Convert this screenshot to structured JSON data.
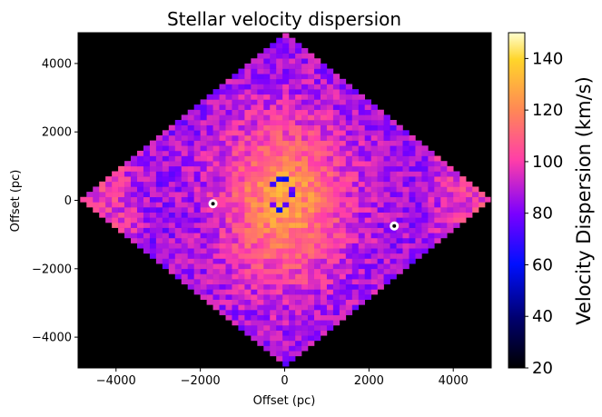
{
  "chart_data": {
    "type": "heatmap",
    "title": "Stellar velocity dispersion",
    "xlabel": "Offset (pc)",
    "ylabel": "Offset (pc)",
    "xlim": [
      -4900,
      4900
    ],
    "ylim": [
      -4900,
      4900
    ],
    "xticks": [
      -4000,
      -2000,
      0,
      2000,
      4000
    ],
    "xtick_labels": [
      "−4000",
      "−2000",
      "0",
      "2000",
      "4000"
    ],
    "yticks": [
      -4000,
      -2000,
      0,
      2000,
      4000
    ],
    "ytick_labels": [
      "−4000",
      "−2000",
      "0",
      "2000",
      "4000"
    ],
    "map_half_diagonal": [
      4850,
      4850
    ],
    "background": "#000000",
    "colorbar": {
      "label": "Velocity Dispersion (km/s)",
      "range": [
        20,
        150
      ],
      "ticks": [
        20,
        40,
        60,
        80,
        100,
        120,
        140
      ],
      "tick_labels": [
        "20",
        "40",
        "60",
        "80",
        "100",
        "120",
        "140"
      ],
      "colormap": "gnuplot2"
    },
    "features": {
      "center_dispersion": 125,
      "outer_dispersion": 85,
      "corner_dispersion": 100,
      "central_ring": {
        "center": [
          -100,
          200
        ],
        "radius": [
          250,
          450
        ],
        "dispersion": 70
      },
      "masked_points": [
        [
          -1700,
          -100
        ],
        [
          2600,
          -750
        ]
      ]
    }
  }
}
